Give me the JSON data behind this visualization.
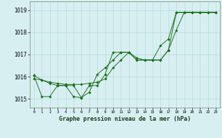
{
  "title": "Graphe pression niveau de la mer (hPa)",
  "ylim": [
    1014.6,
    1019.4
  ],
  "yticks": [
    1015,
    1016,
    1017,
    1018,
    1019
  ],
  "background_color": "#d8eff2",
  "grid_color": "#b8d8dc",
  "line_color": "#1a6e1a",
  "series": {
    "line1": [
      1016.05,
      1015.85,
      1015.75,
      1015.7,
      1015.65,
      1015.65,
      1015.65,
      1015.7,
      1015.75,
      1015.9,
      1016.4,
      1016.75,
      1017.1,
      1016.85,
      1016.75,
      1016.75,
      1016.75,
      1017.2,
      1018.1,
      1018.9,
      1018.9,
      1018.9,
      1018.9,
      1018.9
    ],
    "line2": [
      1016.05,
      1015.1,
      1015.1,
      1015.6,
      1015.6,
      1015.1,
      1015.05,
      1015.6,
      1015.6,
      1016.1,
      1017.1,
      1017.1,
      1017.1,
      1016.75,
      1016.75,
      1016.75,
      1016.75,
      1017.2,
      1018.9,
      1018.9,
      1018.9,
      1018.9,
      1018.9,
      1018.9
    ],
    "line3": [
      1015.9,
      1015.85,
      1015.7,
      1015.6,
      1015.6,
      1015.6,
      1015.05,
      1015.3,
      1016.1,
      1016.4,
      1016.75,
      1017.1,
      1017.1,
      1016.75,
      1016.75,
      1016.75,
      1017.4,
      1017.7,
      1018.9,
      1018.9,
      1018.9,
      1018.9,
      1018.9,
      1018.9
    ]
  }
}
